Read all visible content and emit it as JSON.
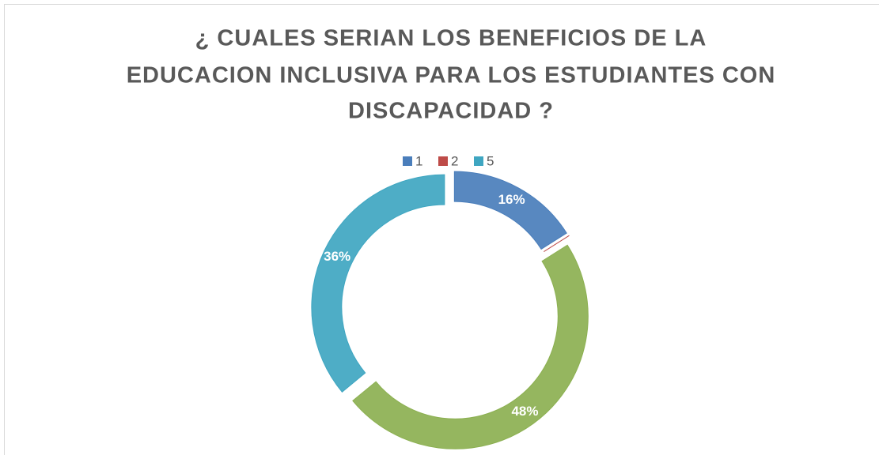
{
  "chart_data": {
    "type": "doughnut",
    "title": [
      "¿ CUALES SERIAN LOS BENEFICIOS DE LA",
      "EDUCACION INCLUSIVA PARA LOS ESTUDIANTES CON",
      "DISCAPACIDAD ?"
    ],
    "categories": [
      "1",
      "2",
      null,
      "5"
    ],
    "values": [
      16,
      0,
      48,
      36
    ],
    "value_labels": [
      "16%",
      null,
      "48%",
      "36%"
    ],
    "colors": [
      "#4a7ebb",
      "#be4b48",
      "#8cb051",
      "#3fa6c1"
    ],
    "legend": "top"
  }
}
